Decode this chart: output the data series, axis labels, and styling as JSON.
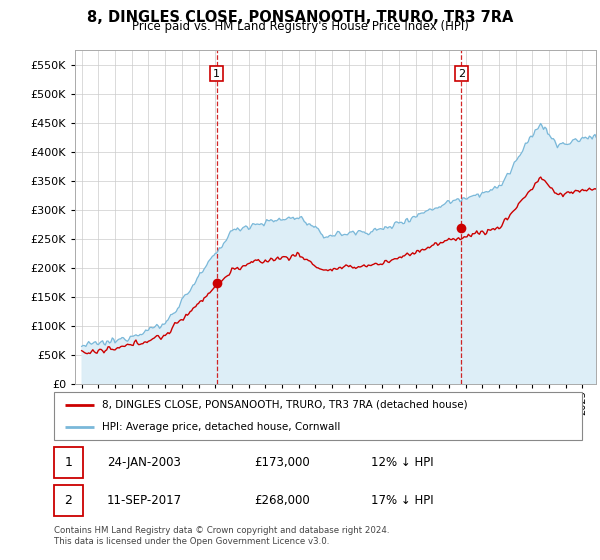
{
  "title": "8, DINGLES CLOSE, PONSANOOTH, TRURO, TR3 7RA",
  "subtitle": "Price paid vs. HM Land Registry's House Price Index (HPI)",
  "legend_line1": "8, DINGLES CLOSE, PONSANOOTH, TRURO, TR3 7RA (detached house)",
  "legend_line2": "HPI: Average price, detached house, Cornwall",
  "transaction1_date": "24-JAN-2003",
  "transaction1_price": "£173,000",
  "transaction1_hpi": "12% ↓ HPI",
  "transaction2_date": "11-SEP-2017",
  "transaction2_price": "£268,000",
  "transaction2_hpi": "17% ↓ HPI",
  "footnote": "Contains HM Land Registry data © Crown copyright and database right 2024.\nThis data is licensed under the Open Government Licence v3.0.",
  "hpi_color": "#7ab8d9",
  "hpi_fill_color": "#ddeef7",
  "price_color": "#cc0000",
  "marker_color": "#cc0000",
  "vline_color": "#cc0000",
  "ylim": [
    0,
    575000
  ],
  "yticks": [
    0,
    50000,
    100000,
    150000,
    200000,
    250000,
    300000,
    350000,
    400000,
    450000,
    500000,
    550000
  ],
  "background_color": "#ffffff",
  "grid_color": "#cccccc",
  "t1_year": 2003.08,
  "t2_year": 2017.75,
  "p1_price": 173000,
  "p2_price": 268000
}
